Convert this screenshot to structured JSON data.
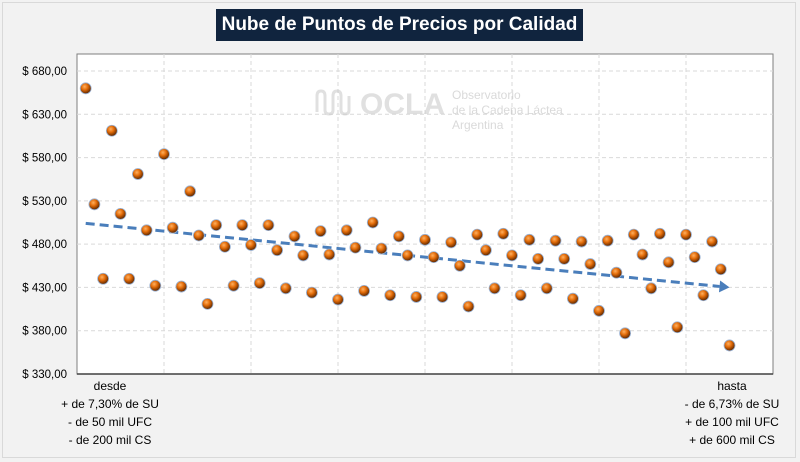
{
  "chart_data": {
    "type": "scatter",
    "title": "Nube de Puntos de Precios por Calidad",
    "xlabel": "",
    "ylabel": "",
    "xlim": [
      0,
      80
    ],
    "ylim": [
      330,
      680
    ],
    "yticks": [
      "$ 330,00",
      "$ 380,00",
      "$ 430,00",
      "$ 480,00",
      "$ 530,00",
      "$ 580,00",
      "$ 630,00",
      "$ 680,00"
    ],
    "ytick_values": [
      330,
      380,
      430,
      480,
      530,
      580,
      630,
      680
    ],
    "x_grid_every": 10,
    "grid": true,
    "marker_color": "#e36c09",
    "trend_color": "#4a7ebb",
    "trend": {
      "style": "dashed-arrow",
      "x": [
        1,
        75
      ],
      "y": [
        504,
        430
      ]
    },
    "x": [
      1,
      2,
      3,
      4,
      5,
      6,
      7,
      8,
      9,
      10,
      11,
      12,
      13,
      14,
      15,
      16,
      17,
      18,
      19,
      20,
      21,
      22,
      23,
      24,
      25,
      26,
      27,
      28,
      29,
      30,
      31,
      32,
      33,
      34,
      35,
      36,
      37,
      38,
      39,
      40,
      41,
      42,
      43,
      44,
      45,
      46,
      47,
      48,
      49,
      50,
      51,
      52,
      53,
      54,
      55,
      56,
      57,
      58,
      59,
      60,
      61,
      62,
      63,
      64,
      65,
      66,
      67,
      68,
      69,
      70,
      71,
      72,
      73,
      74,
      75
    ],
    "y": [
      660,
      526,
      440,
      611,
      515,
      440,
      561,
      496,
      432,
      584,
      499,
      431,
      541,
      490,
      411,
      502,
      477,
      432,
      502,
      479,
      435,
      502,
      473,
      429,
      489,
      467,
      424,
      495,
      468,
      416,
      496,
      476,
      426,
      505,
      475,
      421,
      489,
      467,
      419,
      485,
      465,
      419,
      482,
      455,
      408,
      491,
      473,
      429,
      492,
      467,
      421,
      485,
      463,
      429,
      484,
      463,
      417,
      483,
      457,
      403,
      484,
      447,
      377,
      491,
      468,
      429,
      492,
      459,
      384,
      491,
      465,
      421,
      483,
      451,
      363
    ],
    "left_label": [
      "desde",
      "+ de 7,30% de SU",
      "- de 50 mil UFC",
      "- de 200 mil CS"
    ],
    "right_label": [
      "hasta",
      "- de 6,73% de SU",
      "+ de 100 mil UFC",
      "+ de 600 mil CS"
    ]
  },
  "watermark": {
    "logo": "OCLA",
    "text": [
      "Observatorio",
      "de la Cadena Láctea",
      "Argentina"
    ]
  }
}
